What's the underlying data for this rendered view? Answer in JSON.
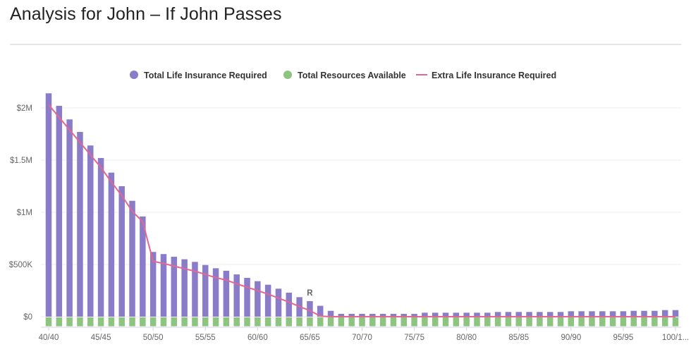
{
  "page": {
    "title": "Analysis for John – If John Passes"
  },
  "chart_data": {
    "type": "bar",
    "title": "",
    "xlabel": "",
    "ylabel": "",
    "ylim": [
      -100000,
      2200000
    ],
    "grid": true,
    "legend_position": "top",
    "y_ticks": [
      {
        "value": 0,
        "label": "$0"
      },
      {
        "value": 500000,
        "label": "$500K"
      },
      {
        "value": 1000000,
        "label": "$1M"
      },
      {
        "value": 1500000,
        "label": "$1.5M"
      },
      {
        "value": 2000000,
        "label": "$2M"
      }
    ],
    "categories": [
      "40/40",
      "41/41",
      "42/42",
      "43/43",
      "44/44",
      "45/45",
      "46/46",
      "47/47",
      "48/48",
      "49/49",
      "50/50",
      "51/51",
      "52/52",
      "53/53",
      "54/54",
      "55/55",
      "56/56",
      "57/57",
      "58/58",
      "59/59",
      "60/60",
      "61/61",
      "62/62",
      "63/63",
      "64/64",
      "65/65",
      "66/66",
      "67/67",
      "68/68",
      "69/69",
      "70/70",
      "71/71",
      "72/72",
      "73/73",
      "74/74",
      "75/75",
      "76/76",
      "77/77",
      "78/78",
      "79/79",
      "80/80",
      "81/81",
      "82/82",
      "83/83",
      "84/84",
      "85/85",
      "86/86",
      "87/87",
      "88/88",
      "89/89",
      "90/90",
      "91/91",
      "92/92",
      "93/93",
      "94/94",
      "95/95",
      "96/96",
      "97/97",
      "98/98",
      "99/99",
      "100/1..."
    ],
    "x_tick_labels": [
      "40/40",
      "45/45",
      "50/50",
      "55/55",
      "60/60",
      "65/65",
      "70/70",
      "75/75",
      "80/80",
      "85/85",
      "90/90",
      "95/95",
      "100/1..."
    ],
    "annotations": [
      {
        "category": "65/65",
        "text": "R"
      }
    ],
    "series": [
      {
        "name": "Total Life Insurance Required",
        "type": "bar",
        "color": "#8b7cc9",
        "values": [
          2140000,
          2020000,
          1890000,
          1770000,
          1640000,
          1520000,
          1380000,
          1250000,
          1110000,
          960000,
          620000,
          600000,
          574000,
          550000,
          525000,
          495000,
          464000,
          440000,
          405000,
          372000,
          340000,
          306000,
          268000,
          230000,
          187000,
          149000,
          104000,
          56000,
          27000,
          27000,
          27000,
          27000,
          27000,
          27000,
          27000,
          27000,
          38000,
          38000,
          38000,
          38000,
          38000,
          38000,
          38000,
          45000,
          45000,
          45000,
          45000,
          45000,
          45000,
          45000,
          52000,
          52000,
          52000,
          52000,
          52000,
          52000,
          56000,
          56000,
          56000,
          63000,
          63000
        ]
      },
      {
        "name": "Total Resources Available",
        "type": "bar",
        "color": "#8dc47f",
        "values": [
          -92000,
          -92000,
          -92000,
          -92000,
          -92000,
          -92000,
          -92000,
          -92000,
          -92000,
          -92000,
          -92000,
          -92000,
          -92000,
          -92000,
          -92000,
          -92000,
          -92000,
          -92000,
          -92000,
          -92000,
          -92000,
          -92000,
          -92000,
          -92000,
          -92000,
          -92000,
          -92000,
          -92000,
          -92000,
          -92000,
          -92000,
          -92000,
          -92000,
          -92000,
          -92000,
          -92000,
          -92000,
          -92000,
          -92000,
          -92000,
          -92000,
          -92000,
          -92000,
          -92000,
          -92000,
          -92000,
          -92000,
          -92000,
          -92000,
          -92000,
          -92000,
          -92000,
          -92000,
          -92000,
          -92000,
          -92000,
          -92000,
          -92000,
          -92000,
          -92000,
          -92000
        ]
      },
      {
        "name": "Extra Life Insurance Required",
        "type": "line",
        "color": "#e5668e",
        "values": [
          2030000,
          1910000,
          1790000,
          1670000,
          1550000,
          1430000,
          1290000,
          1160000,
          1010000,
          910000,
          530000,
          510000,
          484000,
          460000,
          435000,
          405000,
          374000,
          350000,
          315000,
          282000,
          250000,
          216000,
          178000,
          140000,
          97000,
          59000,
          5000,
          0,
          0,
          0,
          0,
          0,
          0,
          0,
          0,
          0,
          0,
          0,
          0,
          0,
          0,
          0,
          0,
          0,
          0,
          0,
          0,
          0,
          0,
          0,
          0,
          0,
          0,
          0,
          0,
          0,
          0,
          0,
          0,
          0,
          0
        ]
      }
    ]
  }
}
